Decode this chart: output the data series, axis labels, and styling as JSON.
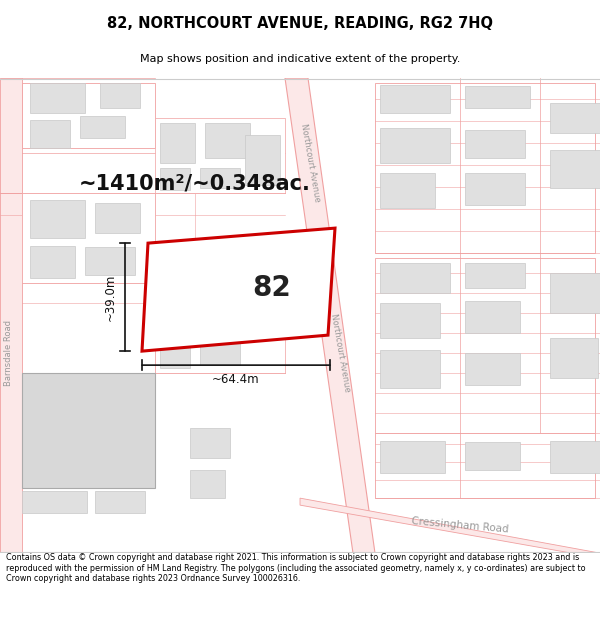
{
  "title": "82, NORTHCOURT AVENUE, READING, RG2 7HQ",
  "subtitle": "Map shows position and indicative extent of the property.",
  "area_text": "~1410m²/~0.348ac.",
  "label_number": "82",
  "dim_width": "~64.4m",
  "dim_height": "~39.0m",
  "footer": "Contains OS data © Crown copyright and database right 2021. This information is subject to Crown copyright and database rights 2023 and is reproduced with the permission of HM Land Registry. The polygons (including the associated geometry, namely x, y co-ordinates) are subject to Crown copyright and database rights 2023 Ordnance Survey 100026316.",
  "map_bg": "#ffffff",
  "road_line_color": "#f0a0a0",
  "road_fill_color": "#fce8e8",
  "building_color": "#e0e0e0",
  "building_edge_color": "#c8c8c8",
  "highlight_color": "#cc0000",
  "highlight_fill": "#ffffff",
  "dim_color": "#111111",
  "label_color": "#222222",
  "area_color": "#111111",
  "street_label_color": "#999999"
}
